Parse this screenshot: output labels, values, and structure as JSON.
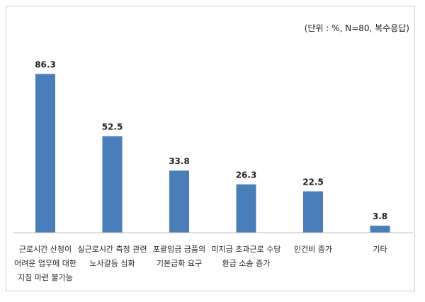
{
  "chart_data": {
    "type": "bar",
    "unit_note": "(단위 : %, N=80, 복수응답)",
    "categories": [
      [
        "근로시간 산정이",
        "어려운 업무에 대한",
        "지침 마련 불가능"
      ],
      [
        "실근로시간 측정 관련",
        "노사갈등 심화"
      ],
      [
        "포괄임금 금품의",
        "기본급화 요구"
      ],
      [
        "미지급 초과근로 수당",
        "환급 소송 증가"
      ],
      [
        "인건비 증가"
      ],
      [
        "기타"
      ]
    ],
    "values": [
      86.3,
      52.5,
      33.8,
      26.3,
      22.5,
      3.8
    ],
    "value_labels": [
      "86.3",
      "52.5",
      "33.8",
      "26.3",
      "22.5",
      "3.8"
    ],
    "ylim": [
      0,
      100
    ],
    "bar_color": "#4a7ebb",
    "grid": false,
    "legend": "none"
  }
}
